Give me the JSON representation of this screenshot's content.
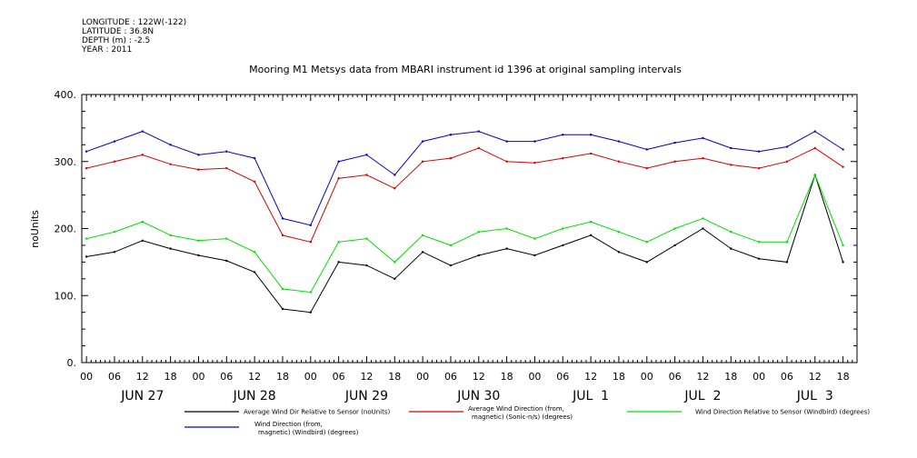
{
  "meta": {
    "longitude": "LONGITUDE : 122W(-122)",
    "latitude": "LATITUDE : 36.8N",
    "depth": "DEPTH (m) : -2.5",
    "year": "YEAR : 2011"
  },
  "chart_data": {
    "type": "line",
    "title": "Mooring M1 Metsys data from MBARI instrument id 1396 at original sampling intervals",
    "ylabel": "noUnits",
    "xlabel": "",
    "ylim": [
      0,
      400
    ],
    "xlim_hours": [
      -1,
      165
    ],
    "y_ticks": [
      "0.",
      "100.",
      "200.",
      "300.",
      "400."
    ],
    "hour_ticks": [
      "00",
      "06",
      "12",
      "18"
    ],
    "day_labels": [
      "JUN 27",
      "JUN 28",
      "JUN 29",
      "JUN 30",
      "JUL  1",
      "JUL  2",
      "JUL  3"
    ],
    "grid": false,
    "legend_position": "bottom",
    "x_hours": [
      0,
      6,
      12,
      18,
      24,
      30,
      36,
      42,
      48,
      54,
      60,
      66,
      72,
      78,
      84,
      90,
      96,
      102,
      108,
      114,
      120,
      126,
      132,
      138,
      144,
      150,
      156,
      162
    ],
    "series": [
      {
        "name": "Average Wind Dir Relative to Sensor (noUnits)",
        "color": "#000000",
        "values": [
          158,
          165,
          182,
          170,
          160,
          152,
          135,
          80,
          75,
          150,
          145,
          125,
          165,
          145,
          160,
          170,
          160,
          175,
          190,
          165,
          150,
          175,
          200,
          170,
          155,
          150,
          280,
          150
        ]
      },
      {
        "name": "Average Wind Direction (from, magnetic) (Sonic-n/s) (degrees)",
        "color": "#d40000",
        "values": [
          290,
          300,
          310,
          296,
          288,
          290,
          270,
          190,
          180,
          275,
          280,
          260,
          300,
          305,
          320,
          300,
          298,
          305,
          312,
          300,
          290,
          300,
          305,
          295,
          290,
          300,
          320,
          292
        ]
      },
      {
        "name": "Wind Direction Relative to Sensor (Windbird) (degrees)",
        "color": "#00e000",
        "values": [
          185,
          195,
          210,
          190,
          182,
          185,
          165,
          110,
          105,
          180,
          185,
          150,
          190,
          175,
          195,
          200,
          185,
          200,
          210,
          195,
          180,
          200,
          215,
          195,
          180,
          180,
          280,
          175
        ]
      },
      {
        "name": "Wind Direction (from, magnetic) (Windbird) (degrees)",
        "color": "#0000cc",
        "values": [
          315,
          330,
          345,
          325,
          310,
          315,
          305,
          215,
          205,
          300,
          310,
          280,
          330,
          340,
          345,
          330,
          330,
          340,
          340,
          330,
          318,
          328,
          335,
          320,
          315,
          322,
          345,
          318
        ]
      }
    ]
  },
  "legend": [
    {
      "label1": "Average Wind Dir Relative to Sensor (noUnits)",
      "label2": ""
    },
    {
      "label1": "Average Wind Direction (from,",
      "label2": "magnetic) (Sonic-n/s) (degrees)"
    },
    {
      "label1": "Wind Direction Relative to Sensor (Windbird) (degrees)",
      "label2": ""
    },
    {
      "label1": "Wind Direction (from,",
      "label2": "magnetic) (Windbird) (degrees)"
    }
  ]
}
